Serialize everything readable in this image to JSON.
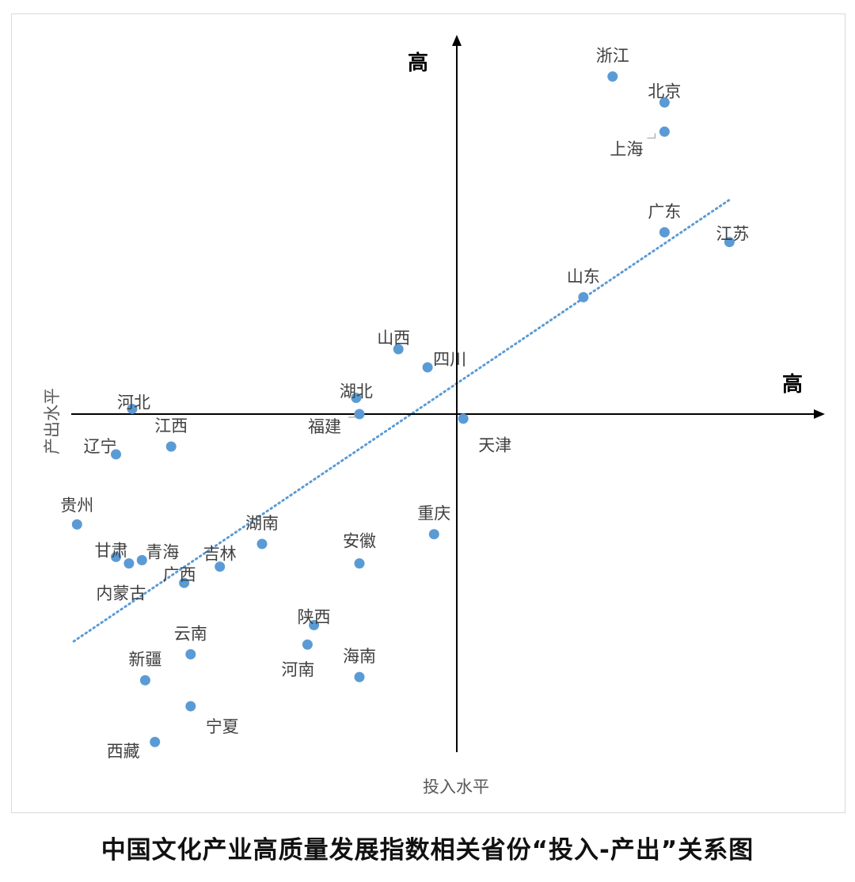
{
  "chart_data": {
    "type": "scatter",
    "xlabel": "投入水平",
    "ylabel": "产出水平",
    "x_axis_end_label": "高",
    "y_axis_end_label": "高",
    "trendline": true,
    "grid": false,
    "xlim": [
      -6,
      5.8
    ],
    "ylim": [
      -5.2,
      5.8
    ],
    "colors": {
      "point": "#5b9bd5",
      "trend": "#5b9bd5",
      "axis": "#000000",
      "label": "#404040"
    },
    "points": [
      {
        "name": "浙江",
        "x": 2.4,
        "y": 5.2
      },
      {
        "name": "北京",
        "x": 3.2,
        "y": 4.8
      },
      {
        "name": "上海",
        "x": 3.2,
        "y": 4.35
      },
      {
        "name": "广东",
        "x": 3.2,
        "y": 2.8
      },
      {
        "name": "江苏",
        "x": 4.2,
        "y": 2.65
      },
      {
        "name": "山东",
        "x": 1.95,
        "y": 1.8
      },
      {
        "name": "山西",
        "x": -0.9,
        "y": 1.0
      },
      {
        "name": "四川",
        "x": -0.45,
        "y": 0.72
      },
      {
        "name": "湖北",
        "x": -1.55,
        "y": 0.25
      },
      {
        "name": "福建",
        "x": -1.5,
        "y": 0.0
      },
      {
        "name": "天津",
        "x": 0.1,
        "y": -0.07
      },
      {
        "name": "河北",
        "x": -5.0,
        "y": 0.08
      },
      {
        "name": "江西",
        "x": -4.4,
        "y": -0.5
      },
      {
        "name": "辽宁",
        "x": -5.25,
        "y": -0.62
      },
      {
        "name": "贵州",
        "x": -5.85,
        "y": -1.7
      },
      {
        "name": "重庆",
        "x": -0.35,
        "y": -1.85
      },
      {
        "name": "湖南",
        "x": -3.0,
        "y": -2.0
      },
      {
        "name": "甘肃",
        "x": -5.25,
        "y": -2.2
      },
      {
        "name": "青海",
        "x": -4.85,
        "y": -2.25
      },
      {
        "name": "内蒙古",
        "x": -5.05,
        "y": -2.3
      },
      {
        "name": "吉林",
        "x": -3.65,
        "y": -2.35
      },
      {
        "name": "安徽",
        "x": -1.5,
        "y": -2.3
      },
      {
        "name": "广西",
        "x": -4.2,
        "y": -2.6
      },
      {
        "name": "陕西",
        "x": -2.2,
        "y": -3.25
      },
      {
        "name": "河南",
        "x": -2.3,
        "y": -3.55
      },
      {
        "name": "云南",
        "x": -4.1,
        "y": -3.7
      },
      {
        "name": "海南",
        "x": -1.5,
        "y": -4.05
      },
      {
        "name": "新疆",
        "x": -4.8,
        "y": -4.1
      },
      {
        "name": "宁夏",
        "x": -4.1,
        "y": -4.5
      },
      {
        "name": "西藏",
        "x": -4.65,
        "y": -5.05
      }
    ],
    "trend_line": {
      "x": [
        -5.9,
        4.2
      ],
      "y": [
        -3.5,
        3.3
      ]
    }
  },
  "caption": "中国文化产业高质量发展指数相关省份“投入-产出”关系图"
}
